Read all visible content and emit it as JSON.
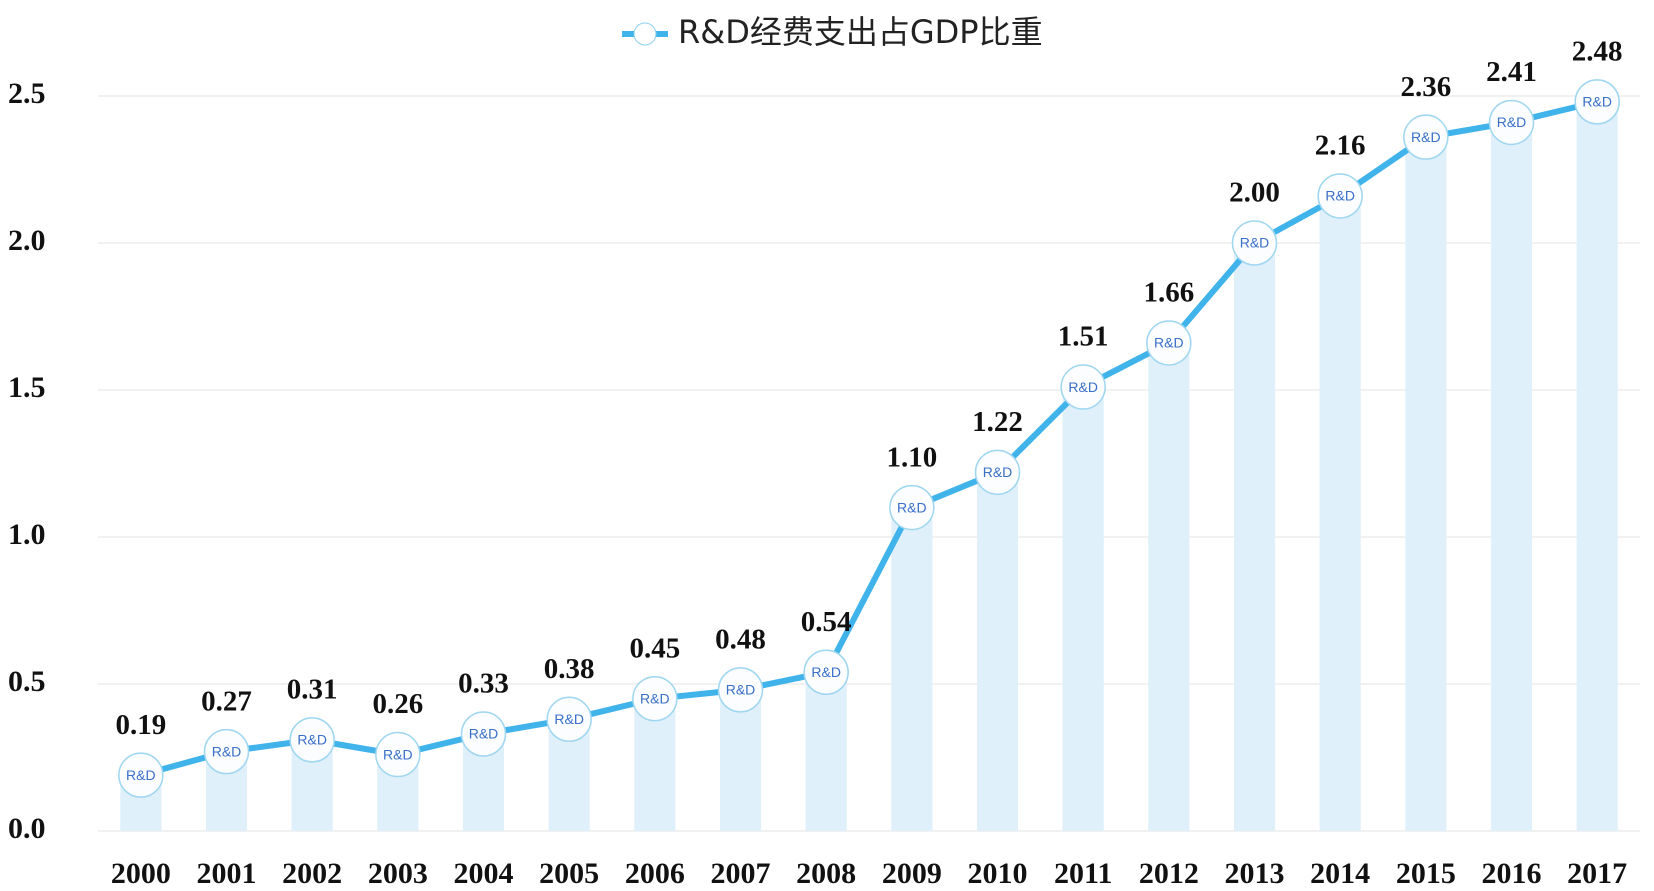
{
  "chart_data": {
    "type": "line",
    "categories": [
      "2000",
      "2001",
      "2002",
      "2003",
      "2004",
      "2005",
      "2006",
      "2007",
      "2008",
      "2009",
      "2010",
      "2011",
      "2012",
      "2013",
      "2014",
      "2015",
      "2016",
      "2017"
    ],
    "series": [
      {
        "name": "R&D经费支出占GDP比重",
        "color": "#3fb3ea",
        "values": [
          0.19,
          0.27,
          0.31,
          0.26,
          0.33,
          0.38,
          0.45,
          0.48,
          0.54,
          1.1,
          1.22,
          1.51,
          1.66,
          2.0,
          2.16,
          2.36,
          2.41,
          2.48
        ],
        "value_labels": [
          "0.19",
          "0.27",
          "0.31",
          "0.26",
          "0.33",
          "0.38",
          "0.45",
          "0.48",
          "0.54",
          "1.10",
          "1.22",
          "1.51",
          "1.66",
          "2.00",
          "2.16",
          "2.36",
          "2.41",
          "2.48"
        ]
      }
    ],
    "marker_text": "R&D",
    "bar_color": "#dff0fb",
    "ylim": [
      0,
      2.5
    ],
    "yticks": [
      {
        "value": 0,
        "label": "0.0"
      },
      0.5,
      {
        "value": 1,
        "label": "1.0"
      },
      1.5,
      {
        "value": 2,
        "label": "2.0"
      },
      2.5
    ],
    "grid": true,
    "legend": "top"
  }
}
